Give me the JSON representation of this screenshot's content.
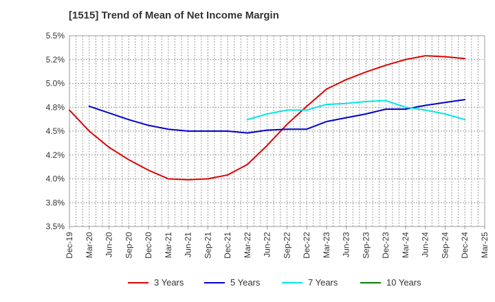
{
  "chart_data": {
    "type": "line",
    "title": "[1515]  Trend of Mean of Net Income Margin",
    "xlabel": "",
    "ylabel": "",
    "ylim": [
      3.5,
      5.5
    ],
    "yticks": [
      3.5,
      3.75,
      4.0,
      4.25,
      4.5,
      4.75,
      5.0,
      5.25,
      5.5
    ],
    "ytick_labels": [
      "3.5%",
      "3.8%",
      "4.0%",
      "4.2%",
      "4.5%",
      "4.8%",
      "5.0%",
      "5.2%",
      "5.5%"
    ],
    "categories": [
      "Dec-19",
      "Mar-20",
      "Jun-20",
      "Sep-20",
      "Dec-20",
      "Mar-21",
      "Jun-21",
      "Sep-21",
      "Dec-21",
      "Mar-22",
      "Jun-22",
      "Sep-22",
      "Dec-22",
      "Mar-23",
      "Jun-23",
      "Sep-23",
      "Dec-23",
      "Mar-24",
      "Jun-24",
      "Sep-24",
      "Dec-24",
      "Mar-25"
    ],
    "grid": true,
    "legend_position": "bottom",
    "series": [
      {
        "name": "3 Years",
        "color": "#dd0000",
        "values": [
          4.72,
          4.5,
          4.33,
          4.2,
          4.09,
          4.0,
          3.99,
          4.0,
          4.04,
          4.15,
          4.35,
          4.57,
          4.76,
          4.94,
          5.04,
          5.12,
          5.19,
          5.25,
          5.29,
          5.28,
          5.26,
          null
        ]
      },
      {
        "name": "5 Years",
        "color": "#0000cc",
        "values": [
          null,
          4.76,
          4.69,
          4.62,
          4.56,
          4.52,
          4.5,
          4.5,
          4.5,
          4.48,
          4.51,
          4.52,
          4.52,
          4.6,
          4.64,
          4.68,
          4.73,
          4.73,
          4.77,
          4.8,
          4.83,
          null
        ]
      },
      {
        "name": "7 Years",
        "color": "#00e5e5",
        "values": [
          null,
          null,
          null,
          null,
          null,
          null,
          null,
          null,
          null,
          4.62,
          4.68,
          4.72,
          4.72,
          4.78,
          4.79,
          4.81,
          4.82,
          4.75,
          4.72,
          4.68,
          4.62,
          null
        ]
      },
      {
        "name": "10 Years",
        "color": "#008000",
        "values": [
          null,
          null,
          null,
          null,
          null,
          null,
          null,
          null,
          null,
          null,
          null,
          null,
          null,
          null,
          null,
          null,
          null,
          null,
          null,
          null,
          null,
          null
        ]
      }
    ]
  }
}
